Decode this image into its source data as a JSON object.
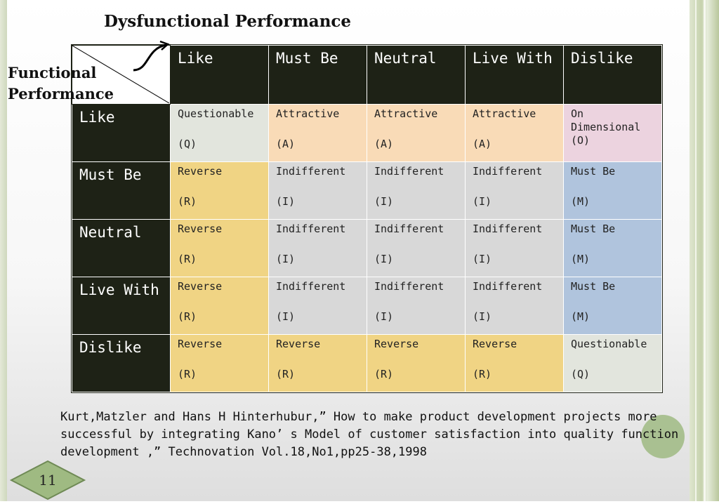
{
  "title": "Dysfunctional Performance",
  "row_axis_title": [
    "Functional",
    "Performance"
  ],
  "column_headers": [
    "Like",
    "Must Be",
    "Neutral",
    "Live With",
    "Dislike"
  ],
  "rows": [
    {
      "header": "Like",
      "cells": [
        {
          "label": "Questionable",
          "code": "(Q)",
          "type": "q"
        },
        {
          "label": "Attractive",
          "code": "(A)",
          "type": "a"
        },
        {
          "label": "Attractive",
          "code": "(A)",
          "type": "a"
        },
        {
          "label": "Attractive",
          "code": "(A)",
          "type": "a"
        },
        {
          "label": "On\nDimensional",
          "code": "(O)",
          "type": "o"
        }
      ]
    },
    {
      "header": "Must Be",
      "cells": [
        {
          "label": "Reverse",
          "code": "(R)",
          "type": "r"
        },
        {
          "label": "Indifferent",
          "code": "(I)",
          "type": "i"
        },
        {
          "label": "Indifferent",
          "code": "(I)",
          "type": "i"
        },
        {
          "label": "Indifferent",
          "code": "(I)",
          "type": "i"
        },
        {
          "label": "Must Be",
          "code": "(M)",
          "type": "m"
        }
      ]
    },
    {
      "header": "Neutral",
      "cells": [
        {
          "label": "Reverse",
          "code": "(R)",
          "type": "r"
        },
        {
          "label": "Indifferent",
          "code": "(I)",
          "type": "i"
        },
        {
          "label": "Indifferent",
          "code": "(I)",
          "type": "i"
        },
        {
          "label": "Indifferent",
          "code": "(I)",
          "type": "i"
        },
        {
          "label": "Must Be",
          "code": "(M)",
          "type": "m"
        }
      ]
    },
    {
      "header": "Live With",
      "cells": [
        {
          "label": "Reverse",
          "code": "(R)",
          "type": "r"
        },
        {
          "label": "Indifferent",
          "code": "(I)",
          "type": "i"
        },
        {
          "label": "Indifferent",
          "code": "(I)",
          "type": "i"
        },
        {
          "label": "Indifferent",
          "code": "(I)",
          "type": "i"
        },
        {
          "label": "Must Be",
          "code": "(M)",
          "type": "m"
        }
      ]
    },
    {
      "header": "Dislike",
      "cells": [
        {
          "label": "Reverse",
          "code": "(R)",
          "type": "r"
        },
        {
          "label": "Reverse",
          "code": "(R)",
          "type": "r"
        },
        {
          "label": "Reverse",
          "code": "(R)",
          "type": "r"
        },
        {
          "label": "Reverse",
          "code": "(R)",
          "type": "r"
        },
        {
          "label": "Questionable",
          "code": "(Q)",
          "type": "q"
        }
      ]
    }
  ],
  "citation": "Kurt,Matzler and Hans H Hinterhubur,” How to make product development projects more successful by integrating Kano’ s Model of customer satisfaction into quality function development ,” Technovation Vol.18,No1,pp25-38,1998",
  "page_number": "11",
  "colors": {
    "header_bg": "#1e2216",
    "questionable": "#e2e5dd",
    "attractive": "#f9dbb7",
    "one_dimensional": "#ecd3df",
    "reverse": "#f0d484",
    "indifferent": "#d8d8d8",
    "must_be": "#b0c4dd",
    "accent_green": "#9fba82"
  }
}
